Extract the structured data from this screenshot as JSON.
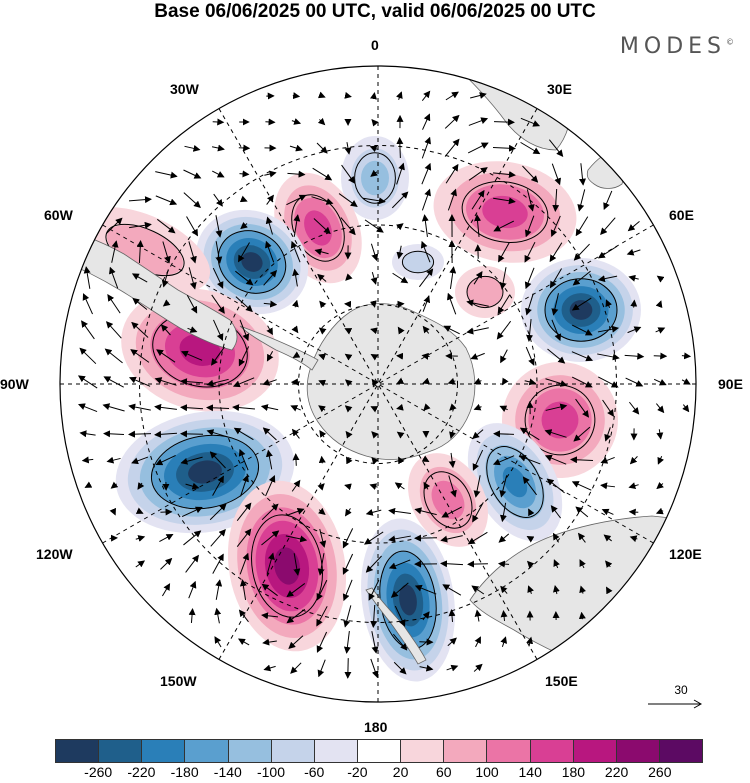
{
  "title": "Base 06/06/2025 00 UTC, valid 06/06/2025 00 UTC",
  "brand": "MODES",
  "brand_mark": "©",
  "map": {
    "projection": "south polar stereographic",
    "longitude_labels": [
      "0",
      "30E",
      "60E",
      "90E",
      "120E",
      "150E",
      "180",
      "150W",
      "120W",
      "90W",
      "60W",
      "30W"
    ],
    "reference_vector": "30"
  },
  "colorbar": {
    "tick_labels": [
      "-260",
      "-220",
      "-180",
      "-140",
      "-100",
      "-60",
      "-20",
      "20",
      "60",
      "100",
      "140",
      "180",
      "220",
      "260"
    ],
    "colors": [
      "#1e3a5f",
      "#1f5f8b",
      "#2a7fb8",
      "#5a9fcf",
      "#96bfdf",
      "#c5d3ea",
      "#e3e3f2",
      "#ffffff",
      "#f8d6dc",
      "#f3a9bd",
      "#eb74a6",
      "#d93f94",
      "#b8177f",
      "#8b0a6e",
      "#5c0a63"
    ]
  },
  "colors": {
    "land": "#e6e6e6",
    "coast": "#666666",
    "grid": "#000000"
  }
}
